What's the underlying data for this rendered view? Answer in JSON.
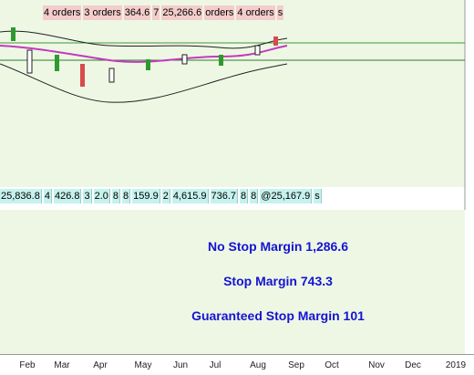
{
  "top_labels": [
    "4 orders",
    "3 orders",
    "364.6",
    "7",
    "25,266.6",
    "orders",
    "4 orders",
    "s"
  ],
  "strip_labels": [
    "25,836.8",
    "4",
    "426.8",
    "3",
    "2.0",
    "8",
    "8",
    "159.9",
    "2",
    "4,615.9",
    "736.7",
    "8",
    "8",
    "@25,167.9",
    "s"
  ],
  "margins": [
    "No Stop Margin 1,286.6",
    "Stop Margin 743.3",
    "Guaranteed Stop Margin 101"
  ],
  "x_axis": {
    "labels": [
      "Feb",
      "Mar",
      "Apr",
      "May",
      "Jun",
      "Jul",
      "Aug",
      "Sep",
      "Oct",
      "Nov",
      "Dec",
      "2019"
    ]
  }
}
